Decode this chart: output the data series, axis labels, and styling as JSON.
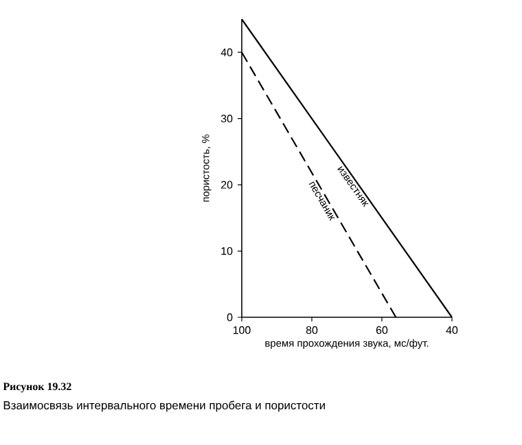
{
  "chart_data": {
    "type": "line",
    "xlabel": "время прохождения звука, мс/фут.",
    "ylabel": "пористость, %",
    "xlim": [
      100,
      40
    ],
    "xticks": [
      100,
      80,
      60,
      40
    ],
    "ylim": [
      0,
      45
    ],
    "yticks": [
      0,
      10,
      20,
      30,
      40
    ],
    "grid": false,
    "legend": false,
    "marker": "none",
    "series": [
      {
        "name": "известняк",
        "color": "#000000",
        "x": [
          100,
          40
        ],
        "values": [
          45,
          0
        ],
        "line_style": "solid"
      },
      {
        "name": "песчаник",
        "color": "#000000",
        "x": [
          100,
          56
        ],
        "values": [
          40,
          0
        ],
        "line_style": "dashed"
      }
    ],
    "annotations": [
      "Рисунок 19.32",
      "Взаимосвязь интервального времени пробега и пористости"
    ]
  }
}
